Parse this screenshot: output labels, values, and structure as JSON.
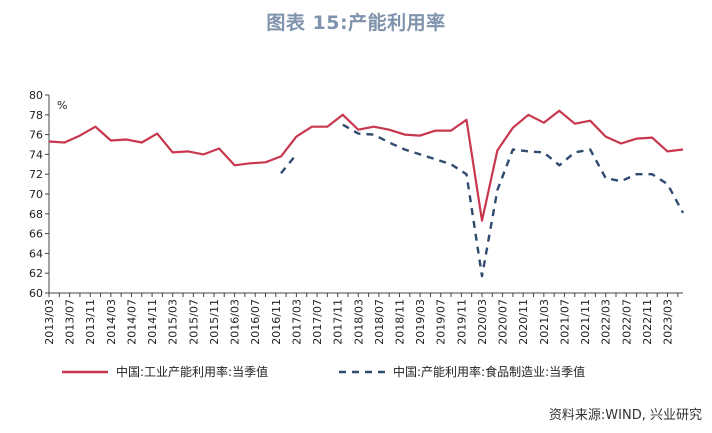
{
  "title": "图表 15:产能利用率",
  "source": "资料来源:WIND, 兴业研究",
  "chart_data": {
    "type": "line",
    "yunit": "%",
    "ylim": [
      60,
      80
    ],
    "yticks": [
      60,
      62,
      64,
      66,
      68,
      70,
      72,
      74,
      76,
      78,
      80
    ],
    "xlabels": [
      "2013/03",
      "2013/07",
      "2013/11",
      "2014/03",
      "2014/07",
      "2014/11",
      "2015/03",
      "2015/07",
      "2015/11",
      "2016/03",
      "2016/07",
      "2016/11",
      "2017/03",
      "2017/07",
      "2017/11",
      "2018/03",
      "2018/07",
      "2018/11",
      "2019/03",
      "2019/07",
      "2019/11",
      "2020/03",
      "2020/07",
      "2020/11",
      "2021/03",
      "2021/07",
      "2021/11",
      "2022/03",
      "2022/07",
      "2022/11",
      "2023/03"
    ],
    "legend_position": "bottom",
    "grid": false,
    "series": [
      {
        "name": "中国:工业产能利用率:当季值",
        "color": "#c8374f",
        "style": "solid",
        "x": [
          "2013/03",
          "2013/06",
          "2013/09",
          "2013/12",
          "2014/03",
          "2014/06",
          "2014/09",
          "2014/12",
          "2015/03",
          "2015/06",
          "2015/09",
          "2015/12",
          "2016/03",
          "2016/06",
          "2016/09",
          "2016/12",
          "2017/03",
          "2017/06",
          "2017/09",
          "2017/12",
          "2018/03",
          "2018/06",
          "2018/09",
          "2018/12",
          "2019/03",
          "2019/06",
          "2019/09",
          "2019/12",
          "2020/03",
          "2020/06",
          "2020/09",
          "2020/12",
          "2021/03",
          "2021/06",
          "2021/09",
          "2021/12",
          "2022/03",
          "2022/06",
          "2022/09",
          "2022/12",
          "2023/03",
          "2023/06"
        ],
        "values": [
          75.3,
          75.2,
          75.9,
          76.8,
          75.4,
          75.5,
          75.2,
          76.1,
          74.2,
          74.3,
          74.0,
          74.6,
          72.9,
          73.1,
          73.2,
          73.8,
          75.8,
          76.8,
          76.8,
          78.0,
          76.5,
          76.8,
          76.5,
          76.0,
          75.9,
          76.4,
          76.4,
          77.5,
          67.3,
          74.4,
          76.7,
          78.0,
          77.2,
          78.4,
          77.1,
          77.4,
          75.8,
          75.1,
          75.6,
          75.7,
          74.3,
          74.5
        ]
      },
      {
        "name": "中国:产能利用率:食品制造业:当季值",
        "color": "#2f4b6e",
        "style": "dashed",
        "x": [
          "2016/12",
          "2017/03",
          "2017/06",
          "2017/09",
          "2017/12",
          "2018/03",
          "2018/06",
          "2018/09",
          "2018/12",
          "2019/03",
          "2019/06",
          "2019/09",
          "2019/12",
          "2020/03",
          "2020/06",
          "2020/09",
          "2020/12",
          "2021/03",
          "2021/06",
          "2021/09",
          "2021/12",
          "2022/03",
          "2022/06",
          "2022/09",
          "2022/12",
          "2023/03",
          "2023/06"
        ],
        "values": [
          72.1,
          74.0,
          null,
          null,
          77.0,
          76.1,
          76.0,
          75.2,
          74.5,
          74.0,
          73.5,
          73.0,
          72.0,
          61.7,
          70.4,
          74.5,
          74.3,
          74.2,
          72.9,
          74.2,
          74.5,
          71.6,
          71.3,
          72.0,
          72.0,
          71.0,
          68.1
        ]
      }
    ]
  }
}
